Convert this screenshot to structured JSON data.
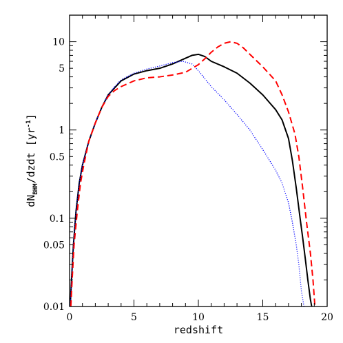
{
  "chart_data": {
    "type": "line",
    "xlabel": "redshift",
    "ylabel": {
      "main": "dN",
      "sub": "BHM",
      "rest": "/dzdt [yr",
      "sup": "-1",
      "end": "]"
    },
    "xlim": [
      0,
      20
    ],
    "ylim": [
      0.01,
      20
    ],
    "yscale": "log",
    "grid": false,
    "x_ticks": [
      0,
      5,
      10,
      15,
      20
    ],
    "x_tick_labels": [
      "0",
      "5",
      "10",
      "15",
      "20"
    ],
    "y_ticks": [
      0.01,
      0.05,
      0.1,
      0.5,
      1,
      5,
      10
    ],
    "y_tick_labels": [
      "0.01",
      "0.05",
      "0.1",
      "0.5",
      "1",
      "5",
      "10"
    ],
    "series": [
      {
        "color": "#000000",
        "style": "solid",
        "x": [
          0.05,
          0.15,
          0.3,
          0.5,
          0.75,
          1.0,
          1.5,
          2.0,
          2.5,
          3.0,
          3.5,
          4.0,
          5.0,
          6.0,
          7.0,
          8.0,
          9.0,
          9.5,
          10.0,
          10.5,
          11.0,
          12.0,
          13.0,
          14.0,
          15.0,
          16.0,
          16.5,
          17.0,
          17.3,
          17.6,
          17.9,
          18.1,
          18.3,
          18.5,
          18.7,
          18.8
        ],
        "y": [
          0.01,
          0.02,
          0.05,
          0.12,
          0.25,
          0.4,
          0.75,
          1.2,
          1.8,
          2.5,
          3.0,
          3.6,
          4.3,
          4.7,
          5.0,
          5.6,
          6.5,
          7.0,
          7.2,
          6.8,
          6.0,
          5.2,
          4.4,
          3.4,
          2.5,
          1.7,
          1.3,
          0.8,
          0.45,
          0.22,
          0.1,
          0.06,
          0.035,
          0.02,
          0.012,
          0.01
        ]
      },
      {
        "color": "#0000ff",
        "style": "dotted",
        "x": [
          0.05,
          0.15,
          0.3,
          0.5,
          0.75,
          1.0,
          1.5,
          2.0,
          2.5,
          3.0,
          3.5,
          4.0,
          5.0,
          6.0,
          7.0,
          8.0,
          8.8,
          9.5,
          10.0,
          11.0,
          12.0,
          13.0,
          14.0,
          15.0,
          16.0,
          16.5,
          17.0,
          17.3,
          17.6,
          17.8,
          18.0,
          18.2
        ],
        "y": [
          0.01,
          0.02,
          0.05,
          0.12,
          0.25,
          0.4,
          0.75,
          1.2,
          1.8,
          2.5,
          3.1,
          3.7,
          4.4,
          4.9,
          5.3,
          5.8,
          6.0,
          5.6,
          4.7,
          3.1,
          2.2,
          1.5,
          1.0,
          0.6,
          0.35,
          0.25,
          0.15,
          0.09,
          0.05,
          0.03,
          0.015,
          0.01
        ]
      },
      {
        "color": "#ff0000",
        "style": "dashed",
        "x": [
          0.1,
          0.2,
          0.35,
          0.6,
          0.85,
          1.1,
          1.5,
          2.0,
          2.5,
          3.0,
          3.5,
          4.0,
          5.0,
          6.0,
          7.0,
          8.0,
          9.0,
          10.0,
          10.5,
          11.0,
          11.5,
          12.0,
          12.5,
          13.0,
          13.5,
          14.0,
          15.0,
          16.0,
          16.5,
          17.0,
          17.5,
          17.8,
          18.1,
          18.4,
          18.7,
          18.9,
          19.05
        ],
        "y": [
          0.01,
          0.02,
          0.05,
          0.12,
          0.25,
          0.4,
          0.75,
          1.2,
          1.8,
          2.4,
          2.8,
          3.1,
          3.6,
          3.9,
          4.0,
          4.2,
          4.5,
          5.5,
          6.4,
          7.6,
          8.7,
          9.6,
          10.0,
          9.6,
          8.5,
          7.2,
          5.2,
          3.6,
          2.5,
          1.6,
          0.9,
          0.5,
          0.22,
          0.09,
          0.04,
          0.02,
          0.01
        ]
      }
    ]
  }
}
